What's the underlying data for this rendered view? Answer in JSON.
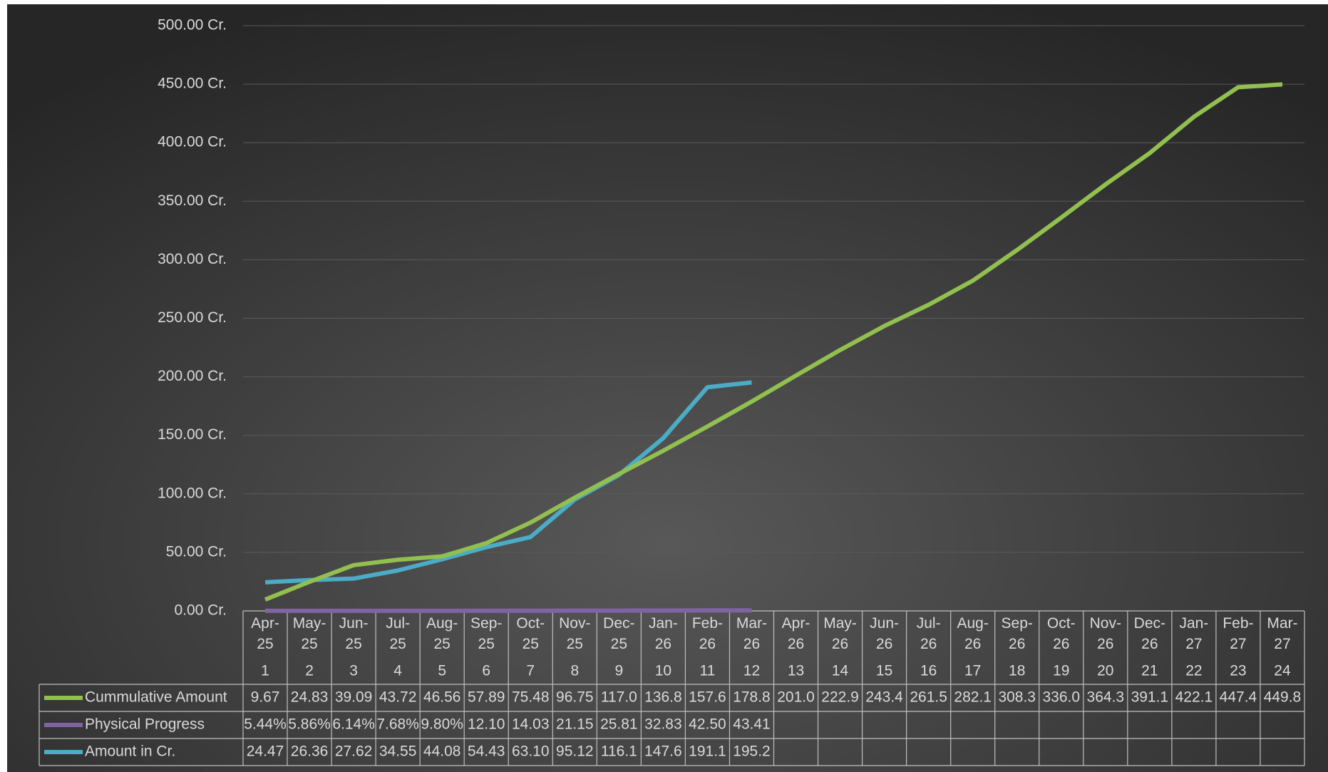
{
  "chart_data": {
    "type": "line",
    "categories": [
      "Apr-25",
      "May-25",
      "Jun-25",
      "Jul-25",
      "Aug-25",
      "Sep-25",
      "Oct-25",
      "Nov-25",
      "Dec-25",
      "Jan-26",
      "Feb-26",
      "Mar-26",
      "Apr-26",
      "May-26",
      "Jun-26",
      "Jul-26",
      "Aug-26",
      "Sep-26",
      "Oct-26",
      "Nov-26",
      "Dec-26",
      "Jan-27",
      "Feb-27",
      "Mar-27"
    ],
    "periods": [
      1,
      2,
      3,
      4,
      5,
      6,
      7,
      8,
      9,
      10,
      11,
      12,
      13,
      14,
      15,
      16,
      17,
      18,
      19,
      20,
      21,
      22,
      23,
      24
    ],
    "series": [
      {
        "name": "Cummulative Amount",
        "color": "#92c050",
        "values": [
          9.67,
          24.83,
          39.09,
          43.72,
          46.56,
          57.89,
          75.48,
          96.75,
          117.0,
          136.8,
          157.6,
          178.8,
          201.0,
          222.9,
          243.4,
          261.5,
          282.1,
          308.3,
          336.0,
          364.3,
          391.1,
          422.1,
          447.4,
          449.8
        ],
        "value_labels": [
          "9.67",
          "24.83",
          "39.09",
          "43.72",
          "46.56",
          "57.89",
          "75.48",
          "96.75",
          "117.0",
          "136.8",
          "157.6",
          "178.8",
          "201.0",
          "222.9",
          "243.4",
          "261.5",
          "282.1",
          "308.3",
          "336.0",
          "364.3",
          "391.1",
          "422.1",
          "447.4",
          "449.8"
        ]
      },
      {
        "name": "Physical Progress",
        "color": "#8064a2",
        "values": [
          0.0544,
          0.0586,
          0.0614,
          0.0768,
          0.098,
          0.121,
          0.1403,
          0.2115,
          0.2581,
          0.3283,
          0.425,
          0.4341,
          null,
          null,
          null,
          null,
          null,
          null,
          null,
          null,
          null,
          null,
          null,
          null
        ],
        "value_labels": [
          "5.44%",
          "5.86%",
          "6.14%",
          "7.68%",
          "9.80%",
          "12.10",
          "14.03",
          "21.15",
          "25.81",
          "32.83",
          "42.50",
          "43.41",
          null,
          null,
          null,
          null,
          null,
          null,
          null,
          null,
          null,
          null,
          null,
          null
        ]
      },
      {
        "name": "Amount in Cr.",
        "color": "#4bacc6",
        "values": [
          24.47,
          26.36,
          27.62,
          34.55,
          44.08,
          54.43,
          63.1,
          95.12,
          116.1,
          147.6,
          191.1,
          195.2,
          null,
          null,
          null,
          null,
          null,
          null,
          null,
          null,
          null,
          null,
          null,
          null
        ],
        "value_labels": [
          "24.47",
          "26.36",
          "27.62",
          "34.55",
          "44.08",
          "54.43",
          "63.10",
          "95.12",
          "116.1",
          "147.6",
          "191.1",
          "195.2",
          null,
          null,
          null,
          null,
          null,
          null,
          null,
          null,
          null,
          null,
          null,
          null
        ]
      }
    ],
    "ylim": [
      0,
      500
    ],
    "yticks": [
      {
        "value": 0,
        "label": "0.00 Cr."
      },
      {
        "value": 50,
        "label": "50.00 Cr."
      },
      {
        "value": 100,
        "label": "100.00 Cr."
      },
      {
        "value": 150,
        "label": "150.00 Cr."
      },
      {
        "value": 200,
        "label": "200.00 Cr."
      },
      {
        "value": 250,
        "label": "250.00 Cr."
      },
      {
        "value": 300,
        "label": "300.00 Cr."
      },
      {
        "value": 350,
        "label": "350.00 Cr."
      },
      {
        "value": 400,
        "label": "400.00 Cr."
      },
      {
        "value": 450,
        "label": "450.00 Cr."
      },
      {
        "value": 500,
        "label": "500.00 Cr."
      }
    ],
    "grid": true
  }
}
